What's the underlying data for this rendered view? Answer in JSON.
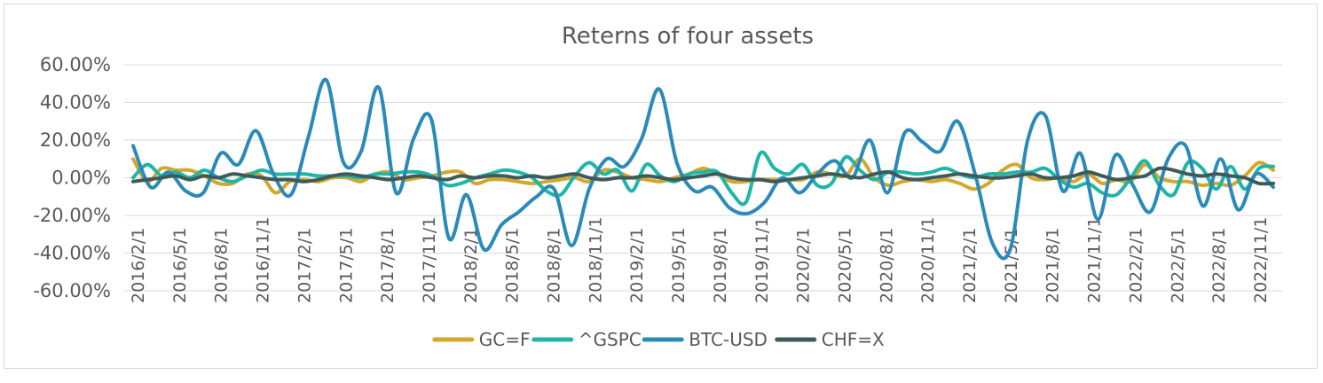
{
  "chart_data": {
    "type": "line",
    "title": "Reterns of four assets",
    "xlabel": "",
    "ylabel": "",
    "ylim": [
      -0.6,
      0.6
    ],
    "y_tick_labels": [
      "60.00%",
      "40.00%",
      "20.00%",
      "0.00%",
      "-20.00%",
      "-40.00%",
      "-60.00%"
    ],
    "y_tick_values": [
      0.6,
      0.4,
      0.2,
      0.0,
      -0.2,
      -0.4,
      -0.6
    ],
    "x_tick_labels": [
      "2016/2/1",
      "2016/5/1",
      "2016/8/1",
      "2016/11/1",
      "2017/2/1",
      "2017/5/1",
      "2017/8/1",
      "2017/11/1",
      "2018/2/1",
      "2018/5/1",
      "2018/8/1",
      "2018/11/1",
      "2019/2/1",
      "2019/5/1",
      "2019/8/1",
      "2019/11/1",
      "2020/2/1",
      "2020/5/1",
      "2020/8/1",
      "2020/11/1",
      "2021/2/1",
      "2021/5/1",
      "2021/8/1",
      "2021/11/1",
      "2022/2/1",
      "2022/5/1",
      "2022/8/1",
      "2022/11/1"
    ],
    "grid": true,
    "legend_position": "bottom",
    "colors": {
      "GC=F": "#d4a72c",
      "^GSPC": "#1fb5a8",
      "BTC-USD": "#2a8ab8",
      "CHF=X": "#3f5a5a"
    },
    "x_start": "2016/2/1",
    "series": [
      {
        "name": "GC=F",
        "values": [
          0.1,
          -0.02,
          0.05,
          0.04,
          0.04,
          0.01,
          -0.03,
          -0.03,
          0.02,
          0.01,
          -0.08,
          -0.02,
          -0.01,
          -0.02,
          0.0,
          0.0,
          -0.02,
          0.02,
          0.03,
          -0.01,
          0.0,
          0.01,
          0.03,
          0.03,
          -0.03,
          -0.01,
          -0.01,
          -0.02,
          -0.03,
          -0.02,
          -0.01,
          0.0,
          -0.02,
          0.04,
          0.03,
          0.0,
          -0.01,
          -0.02,
          0.0,
          0.02,
          0.05,
          0.02,
          -0.02,
          -0.02,
          -0.01,
          -0.01,
          -0.01,
          -0.01,
          0.03,
          0.02,
          0.01,
          0.1,
          0.0,
          -0.04,
          -0.02,
          -0.01,
          -0.02,
          -0.01,
          -0.03,
          -0.06,
          -0.03,
          0.04,
          0.07,
          0.0,
          -0.01,
          0.0,
          -0.02,
          0.02,
          -0.03,
          -0.01,
          -0.02,
          0.07,
          0.0,
          -0.02,
          -0.02,
          -0.04,
          -0.03,
          -0.04,
          0.01,
          0.08,
          0.04
        ]
      },
      {
        "name": "^GSPC",
        "values": [
          0.0,
          0.07,
          0.01,
          0.03,
          0.0,
          0.04,
          0.0,
          -0.02,
          0.01,
          0.04,
          0.02,
          0.02,
          0.02,
          0.01,
          0.01,
          0.01,
          0.0,
          0.02,
          0.02,
          0.03,
          0.03,
          0.01,
          -0.04,
          -0.03,
          0.0,
          0.02,
          0.04,
          0.03,
          0.0,
          -0.07,
          -0.09,
          0.01,
          0.08,
          0.02,
          0.04,
          -0.07,
          0.07,
          0.01,
          -0.02,
          0.02,
          0.03,
          0.03,
          -0.08,
          -0.13,
          0.13,
          0.05,
          0.02,
          0.07,
          -0.04,
          -0.03,
          0.11,
          0.04,
          -0.01,
          0.03,
          0.03,
          0.02,
          0.03,
          0.05,
          0.02,
          0.0,
          0.02,
          0.02,
          0.03,
          0.03,
          0.05,
          -0.01,
          -0.05,
          -0.03,
          -0.08,
          -0.09,
          0.0,
          0.09,
          -0.04,
          -0.09,
          0.08,
          0.05,
          -0.06,
          0.06,
          -0.06,
          0.05,
          0.06
        ]
      },
      {
        "name": "BTC-USD",
        "values": [
          0.17,
          -0.05,
          0.03,
          -0.07,
          -0.08,
          0.13,
          0.07,
          0.25,
          0.02,
          -0.09,
          0.22,
          0.52,
          0.08,
          0.14,
          0.48,
          -0.08,
          0.21,
          0.31,
          -0.32,
          -0.09,
          -0.38,
          -0.25,
          -0.18,
          -0.1,
          -0.06,
          -0.36,
          -0.06,
          0.1,
          0.06,
          0.21,
          0.47,
          0.08,
          -0.07,
          -0.05,
          -0.16,
          -0.19,
          -0.13,
          0.0,
          -0.08,
          0.02,
          0.09,
          0.0,
          0.2,
          -0.08,
          0.24,
          0.19,
          0.14,
          0.3,
          0.02,
          -0.35,
          -0.38,
          0.2,
          0.33,
          -0.07,
          0.13,
          -0.22,
          0.12,
          -0.04,
          -0.18,
          0.1,
          0.17,
          -0.15,
          0.1,
          -0.17,
          0.02,
          -0.05
        ]
      },
      {
        "name": "CHF=X",
        "values": [
          -0.02,
          -0.01,
          0.0,
          0.01,
          -0.01,
          0.01,
          0.0,
          0.02,
          0.01,
          0.0,
          -0.01,
          -0.01,
          -0.02,
          -0.01,
          0.01,
          0.02,
          0.01,
          0.0,
          -0.01,
          0.0,
          0.01,
          0.0,
          -0.01,
          0.01,
          0.0,
          0.01,
          0.01,
          0.0,
          0.01,
          0.0,
          0.01,
          0.02,
          0.0,
          -0.01,
          0.0,
          0.0,
          0.01,
          0.0,
          -0.01,
          0.0,
          0.01,
          0.02,
          0.0,
          -0.01,
          -0.01,
          -0.02,
          -0.01,
          0.0,
          0.01,
          0.02,
          0.01,
          0.0,
          0.02,
          0.03,
          0.0,
          -0.01,
          0.0,
          0.01,
          0.02,
          0.01,
          0.0,
          0.0,
          0.01,
          0.02,
          0.0,
          0.0,
          0.01,
          0.03,
          0.01,
          -0.01,
          0.0,
          0.01,
          0.05,
          0.04,
          0.02,
          0.01,
          0.02,
          0.01,
          0.0,
          -0.03,
          -0.03
        ]
      }
    ]
  }
}
